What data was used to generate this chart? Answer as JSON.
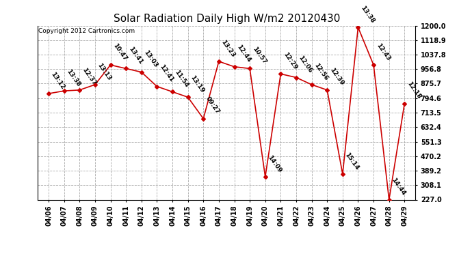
{
  "title": "Solar Radiation Daily High W/m2 20120430",
  "copyright": "Copyright 2012 Cartronics.com",
  "dates": [
    "04/06",
    "04/07",
    "04/08",
    "04/09",
    "04/10",
    "04/11",
    "04/12",
    "04/13",
    "04/14",
    "04/15",
    "04/16",
    "04/17",
    "04/18",
    "04/19",
    "04/20",
    "04/21",
    "04/22",
    "04/23",
    "04/24",
    "04/25",
    "04/26",
    "04/27",
    "04/28",
    "04/29"
  ],
  "values": [
    820,
    835,
    840,
    870,
    980,
    960,
    940,
    860,
    830,
    800,
    680,
    1000,
    970,
    960,
    355,
    930,
    910,
    870,
    840,
    370,
    1190,
    980,
    227,
    765
  ],
  "time_labels": [
    "13:12",
    "13:38",
    "12:37",
    "13:13",
    "10:47",
    "13:41",
    "13:03",
    "12:41",
    "11:54",
    "13:19",
    "09:27",
    "13:23",
    "12:44",
    "10:57",
    "14:09",
    "12:29",
    "12:06",
    "12:56",
    "12:39",
    "15:14",
    "13:38",
    "12:43",
    "14:44",
    "12:18"
  ],
  "ylim_min": 227,
  "ylim_max": 1200,
  "yticks": [
    227.0,
    308.1,
    389.2,
    470.2,
    551.3,
    632.4,
    713.5,
    794.6,
    875.7,
    956.8,
    1037.8,
    1118.9,
    1200.0
  ],
  "ytick_labels": [
    "227.0",
    "308.1",
    "389.2",
    "470.2",
    "551.3",
    "632.4",
    "713.5",
    "794.6",
    "875.7",
    "956.8",
    "1037.8",
    "1118.9",
    "1200.0"
  ],
  "line_color": "#cc0000",
  "marker_color": "#cc0000",
  "bg_color": "#ffffff",
  "grid_color": "#aaaaaa",
  "title_fontsize": 11,
  "annot_fontsize": 6.5,
  "tick_fontsize": 7,
  "copyright_fontsize": 6.5
}
